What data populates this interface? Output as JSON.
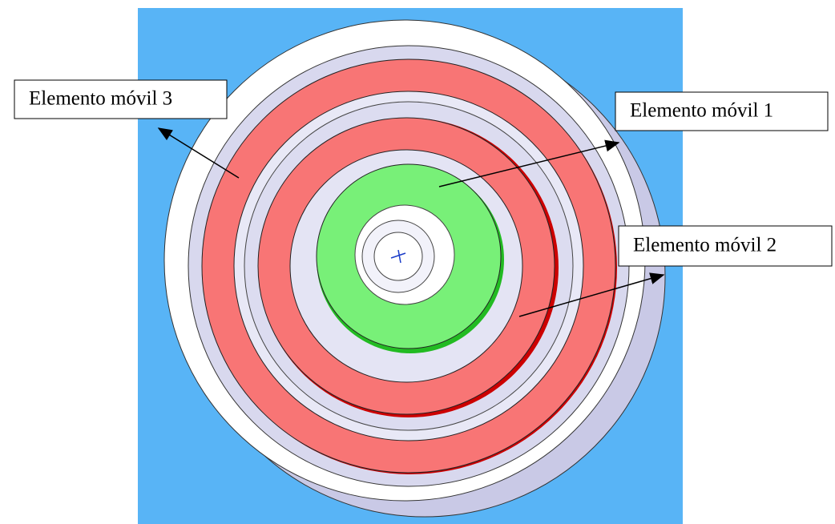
{
  "labels": [
    "Elemento móvil 3",
    "Elemento móvil 1",
    "Elemento móvil 2"
  ]
}
